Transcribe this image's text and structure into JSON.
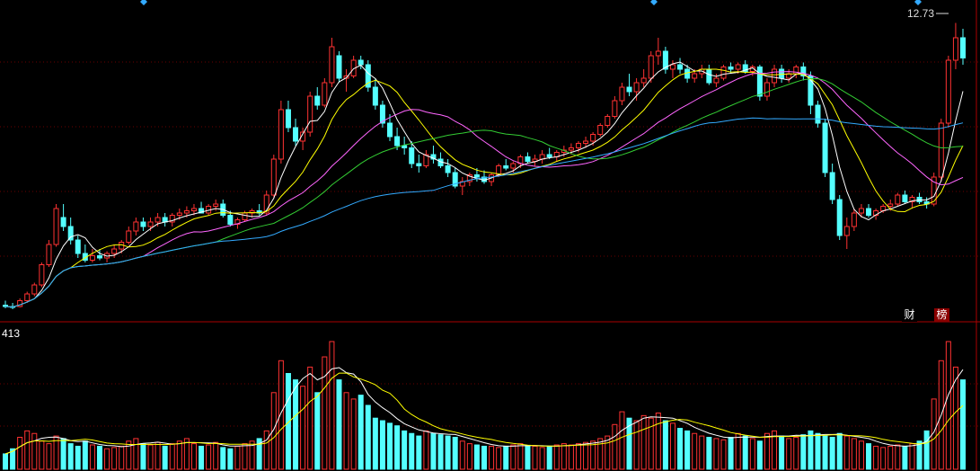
{
  "chart_data": [
    {
      "type": "candlestick",
      "title": "",
      "price_max_label": "12.73",
      "ylim": [
        6.2,
        13.0
      ],
      "right_axis_ticks": [],
      "ma_colors": [
        "#ffffff",
        "#ffff00",
        "#ff66ff",
        "#33cc33",
        "#33aaff"
      ],
      "ohlc": [
        [
          6.45,
          6.55,
          6.38,
          6.42
        ],
        [
          6.42,
          6.5,
          6.36,
          6.4
        ],
        [
          6.42,
          6.6,
          6.4,
          6.55
        ],
        [
          6.55,
          6.75,
          6.5,
          6.7
        ],
        [
          6.7,
          6.95,
          6.65,
          6.9
        ],
        [
          6.9,
          7.4,
          6.85,
          7.35
        ],
        [
          7.35,
          7.9,
          7.3,
          7.8
        ],
        [
          7.8,
          8.7,
          7.75,
          8.6
        ],
        [
          8.4,
          8.7,
          8.1,
          8.2
        ],
        [
          8.2,
          8.4,
          7.8,
          7.9
        ],
        [
          7.9,
          8.0,
          7.5,
          7.6
        ],
        [
          7.6,
          7.8,
          7.4,
          7.45
        ],
        [
          7.45,
          7.7,
          7.4,
          7.55
        ],
        [
          7.55,
          7.7,
          7.45,
          7.5
        ],
        [
          7.5,
          7.65,
          7.4,
          7.6
        ],
        [
          7.6,
          7.8,
          7.5,
          7.7
        ],
        [
          7.7,
          7.9,
          7.6,
          7.85
        ],
        [
          7.85,
          8.2,
          7.8,
          8.1
        ],
        [
          8.1,
          8.4,
          8.0,
          8.3
        ],
        [
          8.3,
          8.4,
          8.1,
          8.2
        ],
        [
          8.2,
          8.4,
          8.1,
          8.3
        ],
        [
          8.3,
          8.5,
          8.2,
          8.4
        ],
        [
          8.4,
          8.5,
          8.2,
          8.3
        ],
        [
          8.3,
          8.5,
          8.2,
          8.45
        ],
        [
          8.45,
          8.6,
          8.35,
          8.5
        ],
        [
          8.5,
          8.65,
          8.4,
          8.55
        ],
        [
          8.55,
          8.7,
          8.45,
          8.6
        ],
        [
          8.6,
          8.75,
          8.5,
          8.5
        ],
        [
          8.5,
          8.7,
          8.45,
          8.65
        ],
        [
          8.65,
          8.8,
          8.55,
          8.7
        ],
        [
          8.7,
          8.8,
          8.4,
          8.45
        ],
        [
          8.45,
          8.55,
          8.2,
          8.25
        ],
        [
          8.25,
          8.4,
          8.15,
          8.35
        ],
        [
          8.35,
          8.55,
          8.3,
          8.5
        ],
        [
          8.5,
          8.6,
          8.4,
          8.55
        ],
        [
          8.55,
          8.7,
          8.45,
          8.5
        ],
        [
          8.5,
          9.0,
          8.45,
          8.9
        ],
        [
          8.9,
          9.8,
          8.85,
          9.7
        ],
        [
          9.7,
          11.0,
          9.6,
          10.8
        ],
        [
          10.8,
          11.0,
          10.3,
          10.4
        ],
        [
          10.4,
          10.6,
          10.0,
          10.1
        ],
        [
          10.1,
          10.4,
          9.9,
          10.3
        ],
        [
          10.3,
          11.2,
          10.2,
          11.1
        ],
        [
          11.1,
          11.3,
          10.8,
          10.9
        ],
        [
          10.9,
          11.5,
          10.85,
          11.4
        ],
        [
          11.4,
          12.4,
          11.3,
          12.2
        ],
        [
          12.0,
          12.1,
          11.4,
          11.5
        ],
        [
          11.5,
          11.7,
          11.2,
          11.55
        ],
        [
          11.55,
          12.0,
          11.5,
          11.9
        ],
        [
          11.9,
          12.0,
          11.7,
          11.8
        ],
        [
          11.8,
          11.9,
          11.2,
          11.3
        ],
        [
          11.3,
          11.5,
          10.8,
          10.9
        ],
        [
          10.9,
          11.0,
          10.4,
          10.5
        ],
        [
          10.5,
          10.7,
          10.1,
          10.2
        ],
        [
          10.2,
          10.4,
          9.9,
          10.0
        ],
        [
          10.0,
          10.2,
          9.8,
          9.95
        ],
        [
          9.95,
          10.1,
          9.5,
          9.6
        ],
        [
          9.6,
          9.8,
          9.4,
          9.55
        ],
        [
          9.55,
          9.9,
          9.5,
          9.8
        ],
        [
          9.8,
          10.0,
          9.6,
          9.7
        ],
        [
          9.7,
          9.85,
          9.5,
          9.55
        ],
        [
          9.55,
          9.7,
          9.3,
          9.4
        ],
        [
          9.4,
          9.5,
          9.05,
          9.1
        ],
        [
          9.1,
          9.3,
          8.9,
          9.2
        ],
        [
          9.2,
          9.4,
          9.1,
          9.35
        ],
        [
          9.35,
          9.5,
          9.2,
          9.3
        ],
        [
          9.3,
          9.45,
          9.15,
          9.2
        ],
        [
          9.2,
          9.4,
          9.1,
          9.35
        ],
        [
          9.35,
          9.6,
          9.3,
          9.55
        ],
        [
          9.55,
          9.7,
          9.45,
          9.5
        ],
        [
          9.5,
          9.65,
          9.4,
          9.6
        ],
        [
          9.6,
          9.8,
          9.5,
          9.75
        ],
        [
          9.75,
          9.85,
          9.6,
          9.65
        ],
        [
          9.65,
          9.8,
          9.55,
          9.7
        ],
        [
          9.7,
          9.9,
          9.6,
          9.8
        ],
        [
          9.8,
          9.95,
          9.7,
          9.75
        ],
        [
          9.75,
          9.9,
          9.65,
          9.85
        ],
        [
          9.85,
          10.0,
          9.75,
          9.9
        ],
        [
          9.9,
          10.05,
          9.8,
          9.95
        ],
        [
          9.95,
          10.1,
          9.85,
          10.05
        ],
        [
          10.05,
          10.2,
          9.95,
          10.1
        ],
        [
          10.1,
          10.3,
          10.0,
          10.25
        ],
        [
          10.25,
          10.5,
          10.2,
          10.45
        ],
        [
          10.45,
          10.7,
          10.4,
          10.65
        ],
        [
          10.65,
          11.1,
          10.6,
          11.0
        ],
        [
          11.0,
          11.4,
          10.9,
          11.3
        ],
        [
          11.3,
          11.6,
          11.1,
          11.2
        ],
        [
          11.2,
          11.5,
          11.0,
          11.4
        ],
        [
          11.4,
          11.7,
          11.3,
          11.5
        ],
        [
          11.5,
          12.1,
          11.4,
          12.0
        ],
        [
          12.0,
          12.4,
          11.8,
          12.1
        ],
        [
          12.1,
          12.2,
          11.6,
          11.7
        ],
        [
          11.7,
          11.9,
          11.5,
          11.8
        ],
        [
          11.8,
          11.95,
          11.6,
          11.7
        ],
        [
          11.7,
          11.8,
          11.4,
          11.5
        ],
        [
          11.5,
          11.7,
          11.4,
          11.6
        ],
        [
          11.6,
          11.8,
          11.5,
          11.7
        ],
        [
          11.7,
          11.8,
          11.35,
          11.4
        ],
        [
          11.4,
          11.6,
          11.3,
          11.5
        ],
        [
          11.5,
          11.8,
          11.45,
          11.75
        ],
        [
          11.75,
          11.85,
          11.6,
          11.7
        ],
        [
          11.7,
          11.85,
          11.6,
          11.8
        ],
        [
          11.8,
          11.9,
          11.6,
          11.65
        ],
        [
          11.65,
          11.8,
          11.55,
          11.75
        ],
        [
          11.75,
          11.8,
          11.0,
          11.1
        ],
        [
          11.1,
          11.5,
          11.0,
          11.4
        ],
        [
          11.4,
          11.8,
          11.3,
          11.7
        ],
        [
          11.7,
          11.8,
          11.4,
          11.5
        ],
        [
          11.5,
          11.7,
          11.4,
          11.6
        ],
        [
          11.6,
          11.8,
          11.5,
          11.75
        ],
        [
          11.75,
          11.85,
          11.45,
          11.55
        ],
        [
          11.55,
          11.65,
          10.7,
          10.9
        ],
        [
          10.9,
          11.0,
          10.4,
          10.5
        ],
        [
          10.5,
          10.6,
          9.3,
          9.4
        ],
        [
          9.4,
          9.6,
          8.7,
          8.8
        ],
        [
          8.8,
          8.9,
          7.9,
          8.0
        ],
        [
          8.0,
          8.4,
          7.7,
          8.2
        ],
        [
          8.2,
          8.6,
          8.1,
          8.5
        ],
        [
          8.5,
          8.7,
          8.4,
          8.6
        ],
        [
          8.6,
          8.7,
          8.4,
          8.45
        ],
        [
          8.45,
          8.6,
          8.35,
          8.55
        ],
        [
          8.55,
          8.7,
          8.5,
          8.65
        ],
        [
          8.65,
          8.8,
          8.55,
          8.7
        ],
        [
          8.7,
          8.95,
          8.65,
          8.9
        ],
        [
          8.9,
          9.0,
          8.7,
          8.75
        ],
        [
          8.75,
          8.9,
          8.6,
          8.85
        ],
        [
          8.85,
          8.95,
          8.7,
          8.75
        ],
        [
          8.75,
          8.85,
          8.6,
          8.7
        ],
        [
          8.7,
          9.4,
          8.65,
          9.3
        ],
        [
          9.3,
          10.6,
          9.2,
          10.5
        ],
        [
          10.5,
          12.0,
          10.4,
          11.9
        ],
        [
          11.9,
          12.73,
          11.7,
          12.4
        ],
        [
          12.4,
          12.6,
          11.8,
          11.95
        ]
      ],
      "volume": [
        12,
        16,
        25,
        30,
        28,
        22,
        20,
        26,
        24,
        20,
        18,
        22,
        19,
        18,
        16,
        17,
        18,
        22,
        24,
        20,
        19,
        21,
        18,
        20,
        22,
        24,
        20,
        18,
        19,
        21,
        17,
        16,
        18,
        20,
        22,
        24,
        30,
        60,
        85,
        75,
        70,
        65,
        80,
        60,
        88,
        100,
        70,
        60,
        55,
        58,
        50,
        40,
        38,
        36,
        34,
        30,
        28,
        26,
        30,
        28,
        27,
        26,
        25,
        22,
        20,
        19,
        18,
        18,
        17,
        18,
        19,
        20,
        18,
        18,
        17,
        18,
        19,
        20,
        19,
        20,
        21,
        22,
        24,
        26,
        35,
        45,
        40,
        38,
        42,
        40,
        44,
        38,
        36,
        32,
        30,
        28,
        26,
        25,
        24,
        23,
        25,
        28,
        26,
        24,
        22,
        28,
        30,
        26,
        24,
        25,
        27,
        30,
        28,
        26,
        25,
        28,
        26,
        24,
        22,
        20,
        18,
        17,
        18,
        19,
        18,
        20,
        22,
        30,
        55,
        85,
        100,
        80,
        70
      ],
      "volume_ma_colors": [
        "#ffffff",
        "#ffff00"
      ],
      "volume_label": "413",
      "markers": [
        {
          "label": "财",
          "color": "#000000"
        },
        {
          "label": "榜",
          "color": "#8b0000"
        }
      ]
    }
  ]
}
